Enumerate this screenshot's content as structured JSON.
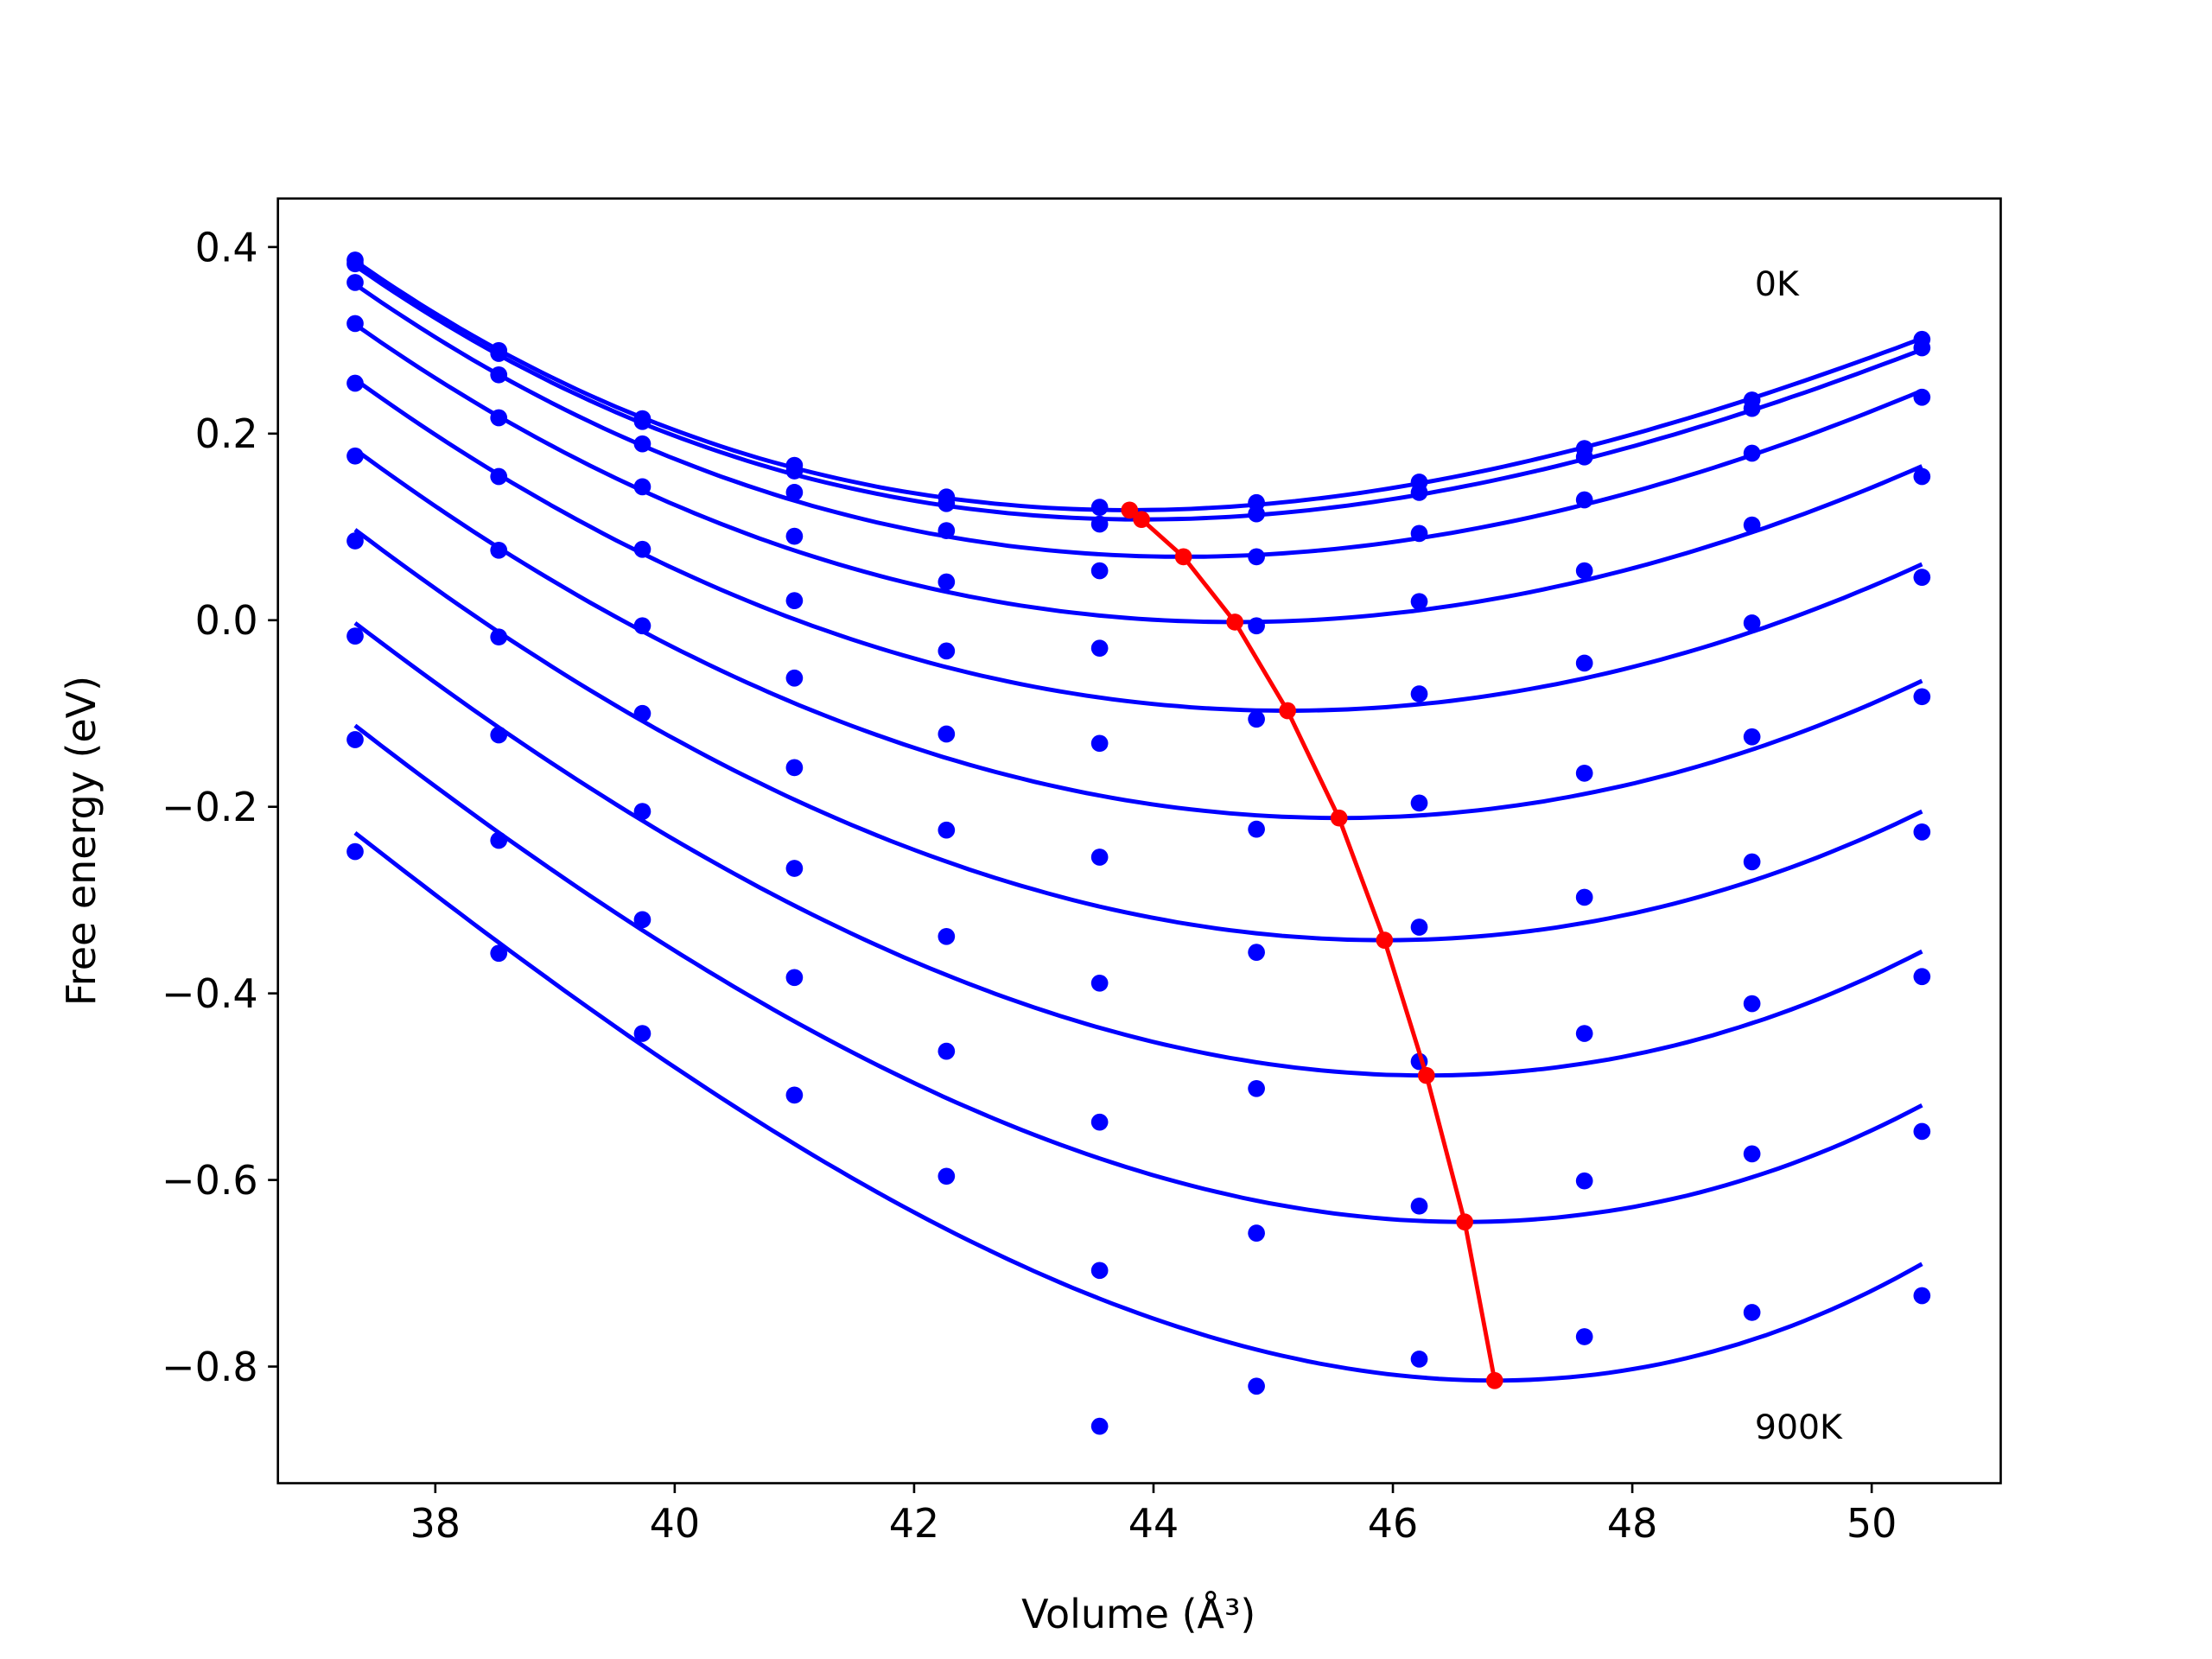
{
  "chart_data": {
    "type": "scatter",
    "xlabel": "Volume (Å³)",
    "ylabel": "Free energy (eV)",
    "xlim": [
      36.685,
      51.078
    ],
    "ylim": [
      -0.925,
      0.452
    ],
    "xticks": [
      38,
      40,
      42,
      44,
      46,
      48,
      50
    ],
    "xtick_labels": [
      "38",
      "40",
      "42",
      "44",
      "46",
      "48",
      "50"
    ],
    "yticks": [
      0.4,
      0.2,
      0.0,
      -0.2,
      -0.4,
      -0.6,
      -0.8
    ],
    "ytick_labels": [
      "0.4",
      "0.2",
      "0.0",
      "−0.2",
      "−0.4",
      "−0.6",
      "−0.8"
    ],
    "grid": false,
    "annotations": [
      {
        "text": "0K",
        "x": 49.0,
        "y": 0.36
      },
      {
        "text": "900K",
        "x": 49.0,
        "y": -0.865
      }
    ],
    "colors": {
      "data": "#0000ff",
      "fit": "#0000ff",
      "minima": "#ff0000"
    },
    "volumes": [
      37.33,
      38.53,
      39.73,
      41.0,
      42.27,
      43.55,
      44.86,
      46.22,
      47.6,
      49.0,
      50.42
    ],
    "series": [
      {
        "values": [
          0.386,
          0.289,
          0.216,
          0.166,
          0.132,
          0.121,
          0.126,
          0.148,
          0.184,
          0.236,
          0.301
        ],
        "fit_min": [
          43.8,
          0.118
        ],
        "fit_ends": [
          0.385,
          0.302
        ]
      },
      {
        "values": [
          0.382,
          0.286,
          0.213,
          0.16,
          0.125,
          0.103,
          0.114,
          0.137,
          0.175,
          0.227,
          0.292
        ],
        "fit_min": [
          43.9,
          0.108
        ],
        "fit_ends": [
          0.38,
          0.29
        ]
      },
      {
        "values": [
          0.362,
          0.263,
          0.189,
          0.137,
          0.096,
          0.053,
          0.068,
          0.093,
          0.129,
          0.179,
          0.239
        ],
        "fit_min": [
          44.25,
          0.068
        ],
        "fit_ends": [
          0.36,
          0.246
        ]
      },
      {
        "values": [
          0.318,
          0.217,
          0.143,
          0.09,
          0.041,
          -0.03,
          -0.006,
          0.02,
          0.053,
          0.102,
          0.154
        ],
        "fit_min": [
          44.68,
          -0.002
        ],
        "fit_ends": [
          0.317,
          0.165
        ]
      },
      {
        "values": [
          0.254,
          0.154,
          0.076,
          0.021,
          -0.033,
          -0.132,
          -0.106,
          -0.079,
          -0.046,
          -0.003,
          0.046
        ],
        "fit_min": [
          45.12,
          -0.097
        ],
        "fit_ends": [
          0.258,
          0.06
        ]
      },
      {
        "values": [
          0.176,
          0.075,
          -0.006,
          -0.062,
          -0.122,
          -0.254,
          -0.224,
          -0.196,
          -0.164,
          -0.125,
          -0.082
        ],
        "fit_min": [
          45.55,
          -0.212
        ],
        "fit_ends": [
          0.183,
          -0.065
        ]
      },
      {
        "values": [
          0.085,
          -0.018,
          -0.1,
          -0.158,
          -0.225,
          -0.389,
          -0.356,
          -0.329,
          -0.297,
          -0.259,
          -0.227
        ],
        "fit_min": [
          45.93,
          -0.343
        ],
        "fit_ends": [
          0.097,
          -0.205
        ]
      },
      {
        "values": [
          -0.017,
          -0.123,
          -0.205,
          -0.266,
          -0.339,
          -0.538,
          -0.502,
          -0.473,
          -0.443,
          -0.411,
          -0.382
        ],
        "fit_min": [
          46.28,
          -0.488
        ],
        "fit_ends": [
          -0.003,
          -0.355
        ]
      },
      {
        "values": [
          -0.128,
          -0.236,
          -0.321,
          -0.383,
          -0.462,
          -0.697,
          -0.657,
          -0.628,
          -0.601,
          -0.572,
          -0.548
        ],
        "fit_min": [
          46.6,
          -0.645
        ],
        "fit_ends": [
          -0.113,
          -0.52
        ]
      },
      {
        "values": [
          -0.248,
          -0.357,
          -0.443,
          -0.509,
          -0.596,
          -0.864,
          -0.821,
          -0.792,
          -0.768,
          -0.742,
          -0.724
        ],
        "fit_min": [
          46.85,
          -0.815
        ],
        "fit_ends": [
          -0.228,
          -0.69
        ]
      }
    ]
  }
}
